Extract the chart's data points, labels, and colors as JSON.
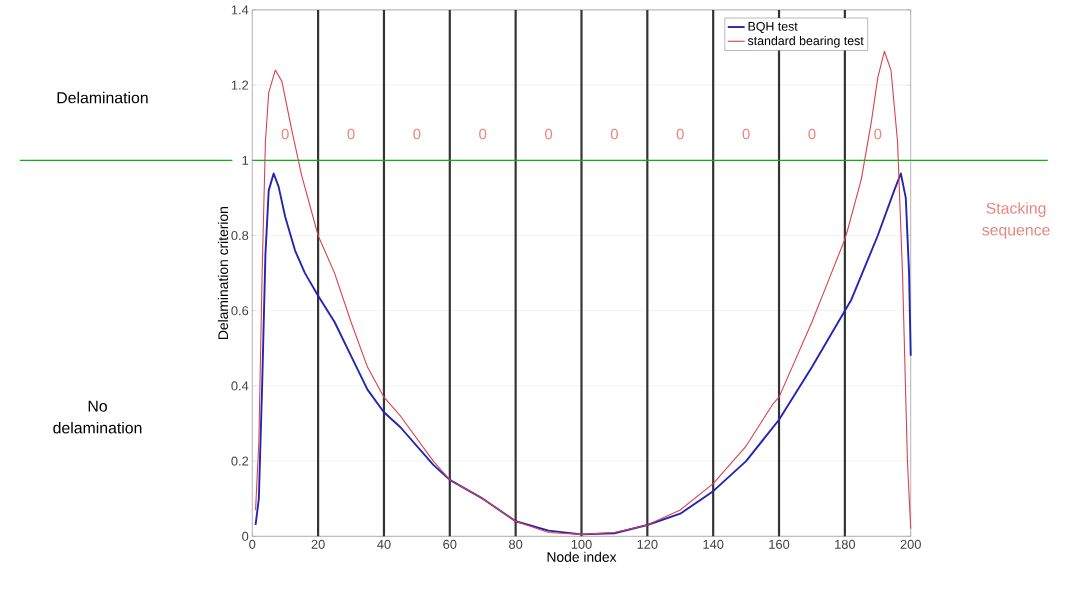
{
  "chart_data": {
    "type": "line",
    "xlabel": "Node index",
    "ylabel": "Delamination criterion",
    "xlim": [
      0,
      200
    ],
    "xticks": [
      0,
      20,
      40,
      60,
      80,
      100,
      120,
      140,
      160,
      180,
      200
    ],
    "ylim": [
      0,
      1.4
    ],
    "yticks": [
      0,
      0.2,
      0.4,
      0.6,
      0.8,
      1,
      1.2,
      1.4
    ],
    "grid": "y",
    "legend": "top right",
    "series": [
      {
        "name": "BQH test",
        "color": "#2323b5",
        "x": [
          1,
          2,
          3,
          4,
          5,
          6.5,
          8,
          10,
          13,
          16,
          20,
          25,
          30,
          35,
          40,
          45,
          50,
          55,
          60,
          70,
          80,
          90,
          100,
          110,
          120,
          130,
          140,
          150,
          160,
          170,
          180,
          182,
          190,
          195,
          197,
          198.5,
          199.5,
          200
        ],
        "values": [
          0.03,
          0.1,
          0.4,
          0.75,
          0.92,
          0.965,
          0.93,
          0.85,
          0.76,
          0.7,
          0.64,
          0.57,
          0.48,
          0.39,
          0.33,
          0.29,
          0.24,
          0.19,
          0.15,
          0.1,
          0.04,
          0.015,
          0.005,
          0.008,
          0.03,
          0.06,
          0.12,
          0.2,
          0.31,
          0.45,
          0.6,
          0.63,
          0.8,
          0.92,
          0.965,
          0.9,
          0.7,
          0.48
        ]
      },
      {
        "name": "standard bearing test",
        "color": "#d9414f",
        "x": [
          1,
          2,
          3,
          4,
          5,
          7,
          9,
          12,
          15,
          20,
          25,
          30,
          35,
          40,
          45,
          50,
          55,
          60,
          70,
          80,
          90,
          100,
          110,
          120,
          130,
          140,
          150,
          158,
          160,
          161,
          170,
          175,
          180,
          181,
          185,
          188,
          190,
          192,
          194,
          196,
          197.5,
          199,
          200
        ],
        "values": [
          0.07,
          0.25,
          0.7,
          1.05,
          1.18,
          1.24,
          1.21,
          1.08,
          0.96,
          0.8,
          0.7,
          0.57,
          0.45,
          0.37,
          0.32,
          0.26,
          0.2,
          0.15,
          0.1,
          0.04,
          0.01,
          0.005,
          0.01,
          0.03,
          0.07,
          0.14,
          0.24,
          0.35,
          0.37,
          0.39,
          0.57,
          0.68,
          0.79,
          0.82,
          0.95,
          1.1,
          1.22,
          1.29,
          1.24,
          1.05,
          0.7,
          0.2,
          0.02
        ]
      }
    ],
    "ref_lines": [
      {
        "axis": "y",
        "value": 1,
        "color": "#10b010"
      },
      {
        "axis": "x",
        "value": 20,
        "color": "#333333"
      },
      {
        "axis": "x",
        "value": 40,
        "color": "#333333"
      },
      {
        "axis": "x",
        "value": 60,
        "color": "#333333"
      },
      {
        "axis": "x",
        "value": 80,
        "color": "#333333"
      },
      {
        "axis": "x",
        "value": 100,
        "color": "#333333"
      },
      {
        "axis": "x",
        "value": 120,
        "color": "#333333"
      },
      {
        "axis": "x",
        "value": 140,
        "color": "#333333"
      },
      {
        "axis": "x",
        "value": 160,
        "color": "#333333"
      },
      {
        "axis": "x",
        "value": 180,
        "color": "#333333"
      }
    ],
    "annotations": [
      "Delamination",
      "No delamination",
      "Stacking sequence",
      "0",
      "0",
      "0",
      "0",
      "0",
      "0",
      "0",
      "0",
      "0",
      "0"
    ]
  }
}
